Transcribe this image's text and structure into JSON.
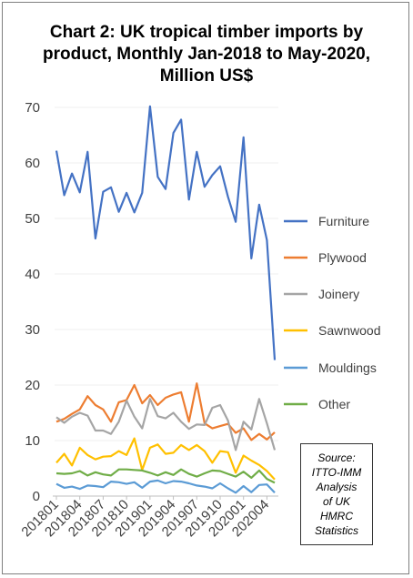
{
  "chart_data": {
    "type": "line",
    "title": "Chart 2: UK tropical timber imports by product, Monthly Jan-2018 to May-2020, Million US$",
    "title_lines": [
      "Chart 2: UK tropical timber imports by",
      "product, Monthly Jan-2018 to May-2020,",
      "Million US$"
    ],
    "xlabel": "",
    "ylabel": "",
    "ylim": [
      0,
      70
    ],
    "yticks": [
      0,
      10,
      20,
      30,
      40,
      50,
      60,
      70
    ],
    "x_tick_labels": [
      "201801",
      "201804",
      "201807",
      "201810",
      "201901",
      "201904",
      "201907",
      "201910",
      "202001",
      "202004"
    ],
    "x": [
      "201801",
      "201802",
      "201803",
      "201804",
      "201805",
      "201806",
      "201807",
      "201808",
      "201809",
      "201810",
      "201811",
      "201812",
      "201901",
      "201902",
      "201903",
      "201904",
      "201905",
      "201906",
      "201907",
      "201908",
      "201909",
      "201910",
      "201911",
      "201912",
      "202001",
      "202002",
      "202003",
      "202004",
      "202005"
    ],
    "grid": "horizontal",
    "legend_position": "right",
    "series": [
      {
        "name": "Furniture",
        "color": "#4472c4",
        "values": [
          62.2,
          54.2,
          58.1,
          54.7,
          62.0,
          46.4,
          54.8,
          55.6,
          51.2,
          54.6,
          51.1,
          54.6,
          70.2,
          57.5,
          55.3,
          65.4,
          67.8,
          53.4,
          62.0,
          55.7,
          57.8,
          59.4,
          53.9,
          49.4,
          64.6,
          42.8,
          52.5,
          46.1,
          24.5
        ]
      },
      {
        "name": "Plywood",
        "color": "#ed7d31",
        "values": [
          13.4,
          13.9,
          14.8,
          15.6,
          18.0,
          16.4,
          15.6,
          13.4,
          16.9,
          17.3,
          20.0,
          16.7,
          18.2,
          16.4,
          17.7,
          18.3,
          18.7,
          13.4,
          20.3,
          13.1,
          12.2,
          12.6,
          13.0,
          11.4,
          12.2,
          10.1,
          11.2,
          10.2,
          11.5
        ]
      },
      {
        "name": "Joinery",
        "color": "#a5a5a5",
        "values": [
          14.2,
          13.2,
          14.3,
          15.0,
          14.5,
          11.8,
          11.8,
          11.2,
          13.4,
          17.2,
          14.3,
          12.2,
          17.5,
          14.4,
          14.0,
          15.0,
          13.4,
          12.1,
          12.9,
          12.8,
          15.9,
          16.4,
          13.6,
          8.3,
          13.4,
          12.0,
          17.5,
          13.1,
          8.3
        ]
      },
      {
        "name": "Sawnwood",
        "color": "#ffc000",
        "values": [
          6.0,
          7.6,
          5.5,
          8.7,
          7.4,
          6.6,
          7.1,
          7.2,
          8.1,
          7.4,
          10.4,
          4.7,
          8.7,
          9.3,
          7.6,
          7.8,
          9.2,
          8.3,
          9.2,
          8.1,
          6.0,
          8.1,
          7.9,
          4.2,
          7.3,
          6.4,
          5.6,
          4.5,
          3.0
        ]
      },
      {
        "name": "Mouldings",
        "color": "#5b9bd5",
        "values": [
          2.2,
          1.5,
          1.7,
          1.3,
          1.9,
          1.8,
          1.6,
          2.6,
          2.5,
          2.2,
          2.5,
          1.5,
          2.6,
          2.8,
          2.3,
          2.7,
          2.6,
          2.3,
          1.9,
          1.7,
          1.4,
          2.3,
          1.4,
          0.6,
          1.8,
          0.7,
          2.0,
          2.1,
          0.6
        ]
      },
      {
        "name": "Other",
        "color": "#70ad47",
        "values": [
          4.1,
          4.0,
          4.1,
          4.5,
          3.7,
          4.3,
          3.9,
          3.7,
          4.8,
          4.8,
          4.7,
          4.6,
          4.2,
          3.7,
          4.3,
          3.8,
          4.8,
          4.0,
          3.5,
          4.1,
          4.6,
          4.5,
          4.0,
          3.5,
          4.4,
          3.3,
          4.6,
          3.1,
          2.4
        ]
      }
    ],
    "annotation": [
      "Source:",
      "ITTO-IMM",
      "Analysis",
      "of UK",
      "HMRC",
      "Statistics"
    ]
  }
}
